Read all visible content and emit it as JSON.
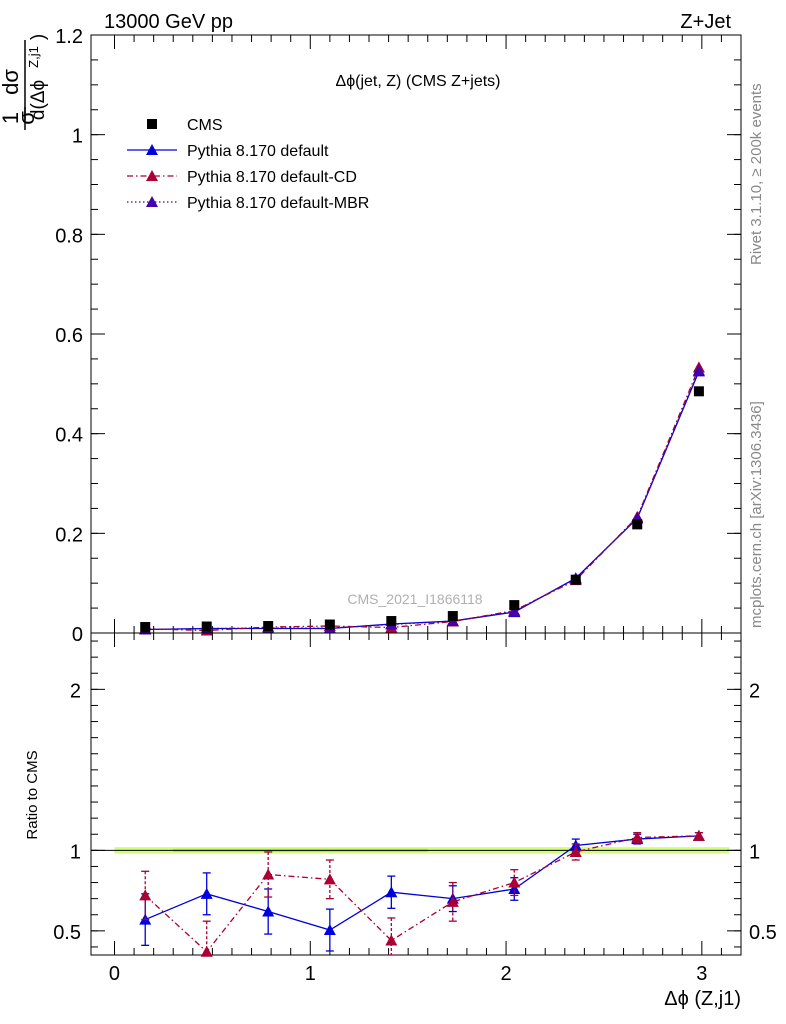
{
  "header": {
    "left": "13000 GeV pp",
    "right": "Z+Jet"
  },
  "side_labels": {
    "rivet": "Rivet 3.1.10, ≥ 200k events",
    "mcplots": "mcplots.cern.ch [arXiv:1306.3436]"
  },
  "watermark": "CMS_2021_I1866118",
  "colors": {
    "cms": "#000000",
    "default": "#0000dd",
    "cd": "#aa0033",
    "mbr": "#4400aa",
    "band_outer": "#ccff66",
    "band_inner": "#99dd33"
  },
  "chart_data": [
    {
      "type": "scatter",
      "panel": "main",
      "title": "Δϕ(jet, Z) (CMS Z+jets)",
      "ylabel": {
        "prefix": "1",
        "prefix_den": "σ",
        "num": "dσ",
        "den": "d(Δϕ",
        "sup": "Z,j1",
        "close": ")"
      },
      "xlim": [
        -0.12,
        3.2
      ],
      "ylim": [
        0,
        1.2
      ],
      "yticks": [
        "0",
        "0.2",
        "0.4",
        "0.6",
        "0.8",
        "1",
        "1.2"
      ],
      "ytick_values": [
        0,
        0.2,
        0.4,
        0.6,
        0.8,
        1.0,
        1.2
      ],
      "x": [
        0.157,
        0.471,
        0.785,
        1.1,
        1.414,
        1.728,
        2.042,
        2.356,
        2.67,
        2.985
      ],
      "series": [
        {
          "name": "CMS",
          "style": "square",
          "values": [
            0.012,
            0.013,
            0.014,
            0.017,
            0.024,
            0.034,
            0.056,
            0.107,
            0.218,
            0.485
          ]
        },
        {
          "name": "Pythia 8.170 default",
          "style": "solid",
          "values": [
            0.007,
            0.009,
            0.009,
            0.009,
            0.018,
            0.024,
            0.042,
            0.11,
            0.23,
            0.525
          ]
        },
        {
          "name": "Pythia 8.170 default-CD",
          "style": "dashdot",
          "values": [
            0.0085,
            0.005,
            0.012,
            0.014,
            0.011,
            0.023,
            0.045,
            0.106,
            0.233,
            0.533
          ]
        },
        {
          "name": "Pythia 8.170 default-MBR",
          "style": "dotted",
          "values": [
            0.007,
            0.009,
            0.01,
            0.01,
            0.017,
            0.024,
            0.043,
            0.109,
            0.231,
            0.527
          ]
        }
      ]
    },
    {
      "type": "line",
      "panel": "ratio",
      "ylabel": "Ratio to CMS",
      "xlabel": "Δϕ (Z,j1)",
      "xlim": [
        -0.12,
        3.2
      ],
      "ylim": [
        0.35,
        2.35
      ],
      "yticks": [
        "0.5",
        "1",
        "2"
      ],
      "ytick_values": [
        0.5,
        1.0,
        2.0
      ],
      "xticks": [
        "0",
        "1",
        "2",
        "3"
      ],
      "xtick_values": [
        0,
        1,
        2,
        3
      ],
      "x": [
        0.157,
        0.471,
        0.785,
        1.1,
        1.414,
        1.728,
        2.042,
        2.356,
        2.67,
        2.985
      ],
      "series": [
        {
          "name": "Pythia 8.170 default",
          "values": [
            0.57,
            0.73,
            0.62,
            0.505,
            0.74,
            0.7,
            0.76,
            1.03,
            1.07,
            1.09
          ],
          "errors": [
            0.16,
            0.13,
            0.14,
            0.13,
            0.1,
            0.08,
            0.07,
            0.04,
            0.03,
            0.02
          ]
        },
        {
          "name": "Pythia 8.170 default-CD",
          "values": [
            0.72,
            0.37,
            0.85,
            0.82,
            0.44,
            0.68,
            0.8,
            0.99,
            1.08,
            1.09
          ],
          "errors": [
            0.15,
            0.19,
            0.14,
            0.12,
            0.14,
            0.12,
            0.08,
            0.05,
            0.03,
            0.02
          ]
        }
      ],
      "reference_band": {
        "x_range": [
          0.0,
          3.14
        ],
        "y_range": [
          0.98,
          1.02
        ]
      }
    }
  ]
}
